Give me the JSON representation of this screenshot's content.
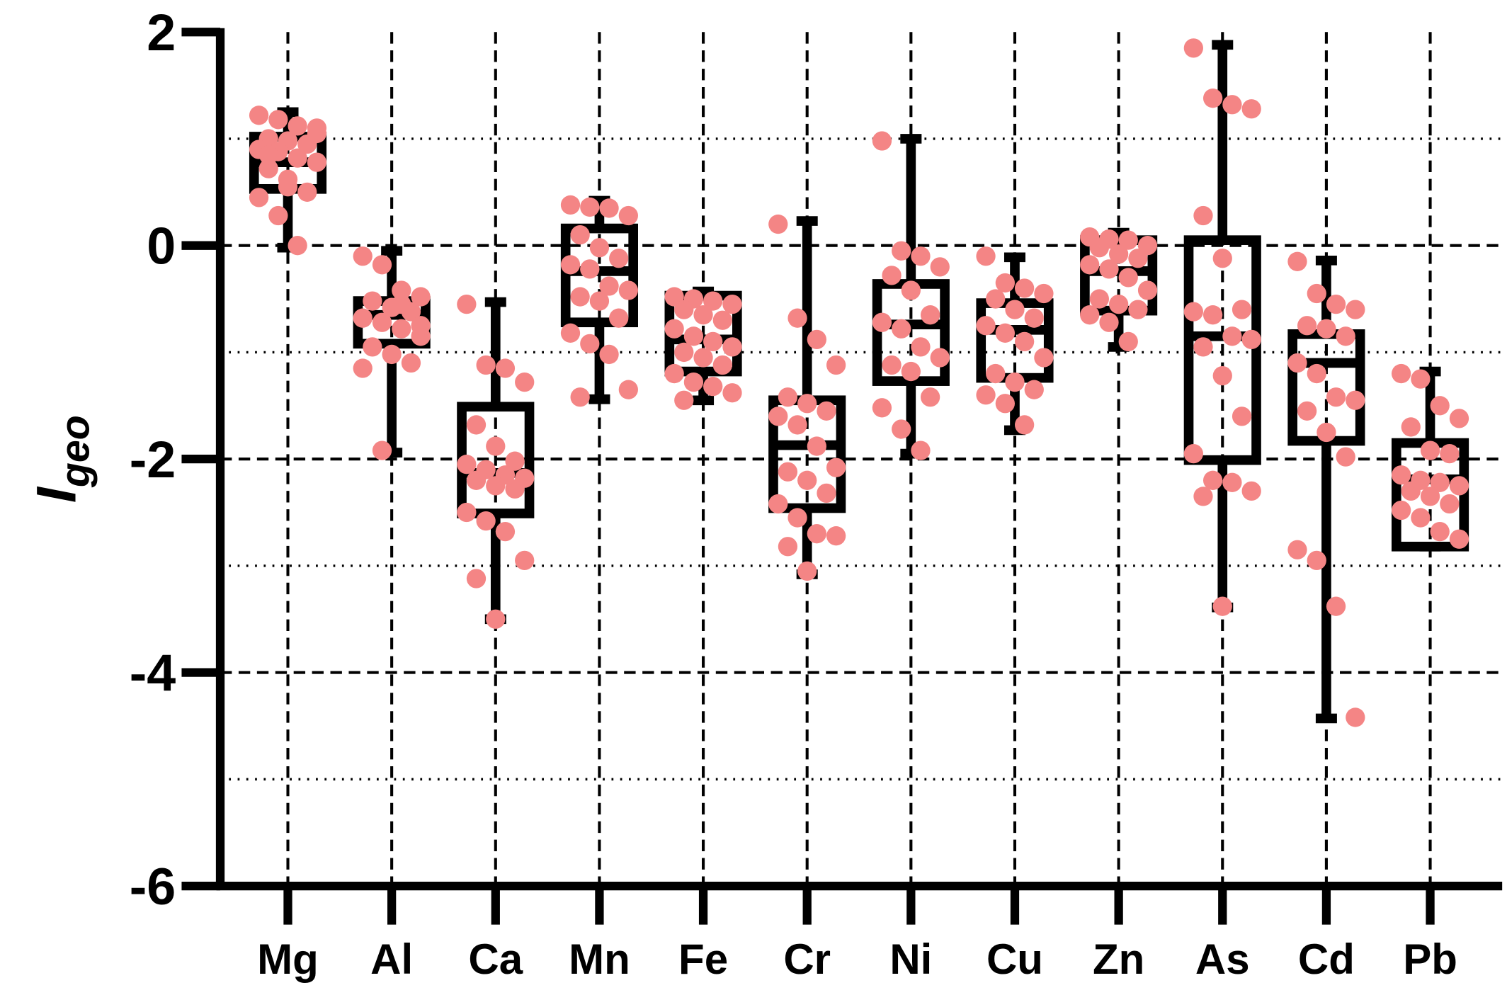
{
  "chart_data": {
    "type": "box",
    "ylabel": "I",
    "ylabel_sub": "geo",
    "categories": [
      "Mg",
      "Al",
      "Ca",
      "Mn",
      "Fe",
      "Cr",
      "Ni",
      "Cu",
      "Zn",
      "As",
      "Cd",
      "Pb"
    ],
    "boxes": [
      [
        -0.02,
        0.53,
        0.78,
        1.02,
        1.25
      ],
      [
        -1.94,
        -0.92,
        -0.65,
        -0.52,
        -0.05
      ],
      [
        -3.5,
        -2.51,
        -2.13,
        -1.51,
        -0.53
      ],
      [
        -1.44,
        -0.72,
        -0.24,
        0.16,
        0.42
      ],
      [
        -1.45,
        -1.18,
        -0.88,
        -0.47,
        -0.43
      ],
      [
        -3.08,
        -2.46,
        -1.87,
        -1.45,
        0.23
      ],
      [
        -1.95,
        -1.27,
        -0.74,
        -0.36,
        1.0
      ],
      [
        -1.73,
        -1.24,
        -0.79,
        -0.54,
        -0.11
      ],
      [
        -0.95,
        -0.61,
        -0.24,
        0.05,
        0.12
      ],
      [
        -3.39,
        -2.01,
        -0.85,
        0.05,
        1.88
      ],
      [
        -4.43,
        -1.83,
        -1.1,
        -0.83,
        -0.14
      ],
      [
        -2.82,
        -2.82,
        -2.19,
        -1.85,
        -1.18
      ]
    ],
    "points": [
      [
        1.22,
        1.18,
        1.12,
        1.05,
        1.0,
        0.98,
        0.95,
        0.9,
        0.88,
        0.82,
        0.78,
        0.72,
        0.55,
        0.5,
        0.45,
        0.28,
        0.0,
        1.1,
        0.85,
        0.62
      ],
      [
        -0.1,
        -0.18,
        -0.42,
        -0.48,
        -0.52,
        -0.58,
        -0.62,
        -0.68,
        -0.72,
        -0.78,
        -0.85,
        -0.95,
        -1.02,
        -1.1,
        -1.15,
        -1.92,
        -0.55,
        -0.75
      ],
      [
        -0.55,
        -1.12,
        -1.15,
        -1.28,
        -1.68,
        -1.88,
        -2.02,
        -2.05,
        -2.1,
        -2.15,
        -2.18,
        -2.2,
        -2.25,
        -2.28,
        -2.5,
        -2.58,
        -2.68,
        -2.95,
        -3.12,
        -3.5
      ],
      [
        0.38,
        0.36,
        0.35,
        0.28,
        0.1,
        -0.02,
        -0.12,
        -0.18,
        -0.22,
        -0.38,
        -0.42,
        -0.48,
        -0.52,
        -0.68,
        -0.82,
        -0.92,
        -1.02,
        -1.35,
        -1.42
      ],
      [
        -0.48,
        -0.5,
        -0.52,
        -0.55,
        -0.6,
        -0.65,
        -0.7,
        -0.78,
        -0.85,
        -0.9,
        -0.95,
        -1.0,
        -1.05,
        -1.12,
        -1.2,
        -1.28,
        -1.32,
        -1.38,
        -1.45
      ],
      [
        0.2,
        -0.68,
        -0.88,
        -1.12,
        -1.42,
        -1.48,
        -1.55,
        -1.6,
        -1.68,
        -1.88,
        -2.08,
        -2.12,
        -2.2,
        -2.32,
        -2.42,
        -2.55,
        -2.7,
        -2.72,
        -2.82,
        -3.05
      ],
      [
        0.98,
        -0.05,
        -0.1,
        -0.2,
        -0.28,
        -0.42,
        -0.65,
        -0.72,
        -0.78,
        -0.95,
        -1.05,
        -1.12,
        -1.18,
        -1.42,
        -1.52,
        -1.72,
        -1.92
      ],
      [
        -0.1,
        -0.35,
        -0.4,
        -0.45,
        -0.5,
        -0.6,
        -0.68,
        -0.75,
        -0.82,
        -0.9,
        -1.05,
        -1.2,
        -1.28,
        -1.35,
        -1.4,
        -1.48,
        -1.68
      ],
      [
        0.08,
        0.06,
        0.05,
        0.0,
        -0.02,
        -0.08,
        -0.12,
        -0.18,
        -0.22,
        -0.3,
        -0.42,
        -0.5,
        -0.55,
        -0.6,
        -0.65,
        -0.72,
        -0.9
      ],
      [
        1.85,
        1.38,
        1.32,
        1.28,
        0.28,
        -0.12,
        -0.6,
        -0.62,
        -0.65,
        -0.85,
        -0.88,
        -0.95,
        -1.22,
        -1.6,
        -1.95,
        -2.2,
        -2.22,
        -2.3,
        -2.35,
        -3.38
      ],
      [
        -0.15,
        -0.45,
        -0.55,
        -0.6,
        -0.75,
        -0.78,
        -0.85,
        -1.1,
        -1.2,
        -1.42,
        -1.45,
        -1.55,
        -1.75,
        -1.98,
        -2.85,
        -2.95,
        -3.38,
        -4.42
      ],
      [
        -1.2,
        -1.25,
        -1.5,
        -1.62,
        -1.7,
        -1.92,
        -1.95,
        -2.15,
        -2.2,
        -2.22,
        -2.25,
        -2.3,
        -2.35,
        -2.42,
        -2.48,
        -2.55,
        -2.68,
        -2.75
      ]
    ],
    "point_color": "#f48585",
    "box_color": "#000000",
    "ylim": [
      -6,
      2
    ],
    "yticks": [
      -6,
      -4,
      -2,
      0,
      2
    ],
    "minor_gridlines": [
      -5,
      -3,
      -1,
      1
    ],
    "grid": true
  }
}
